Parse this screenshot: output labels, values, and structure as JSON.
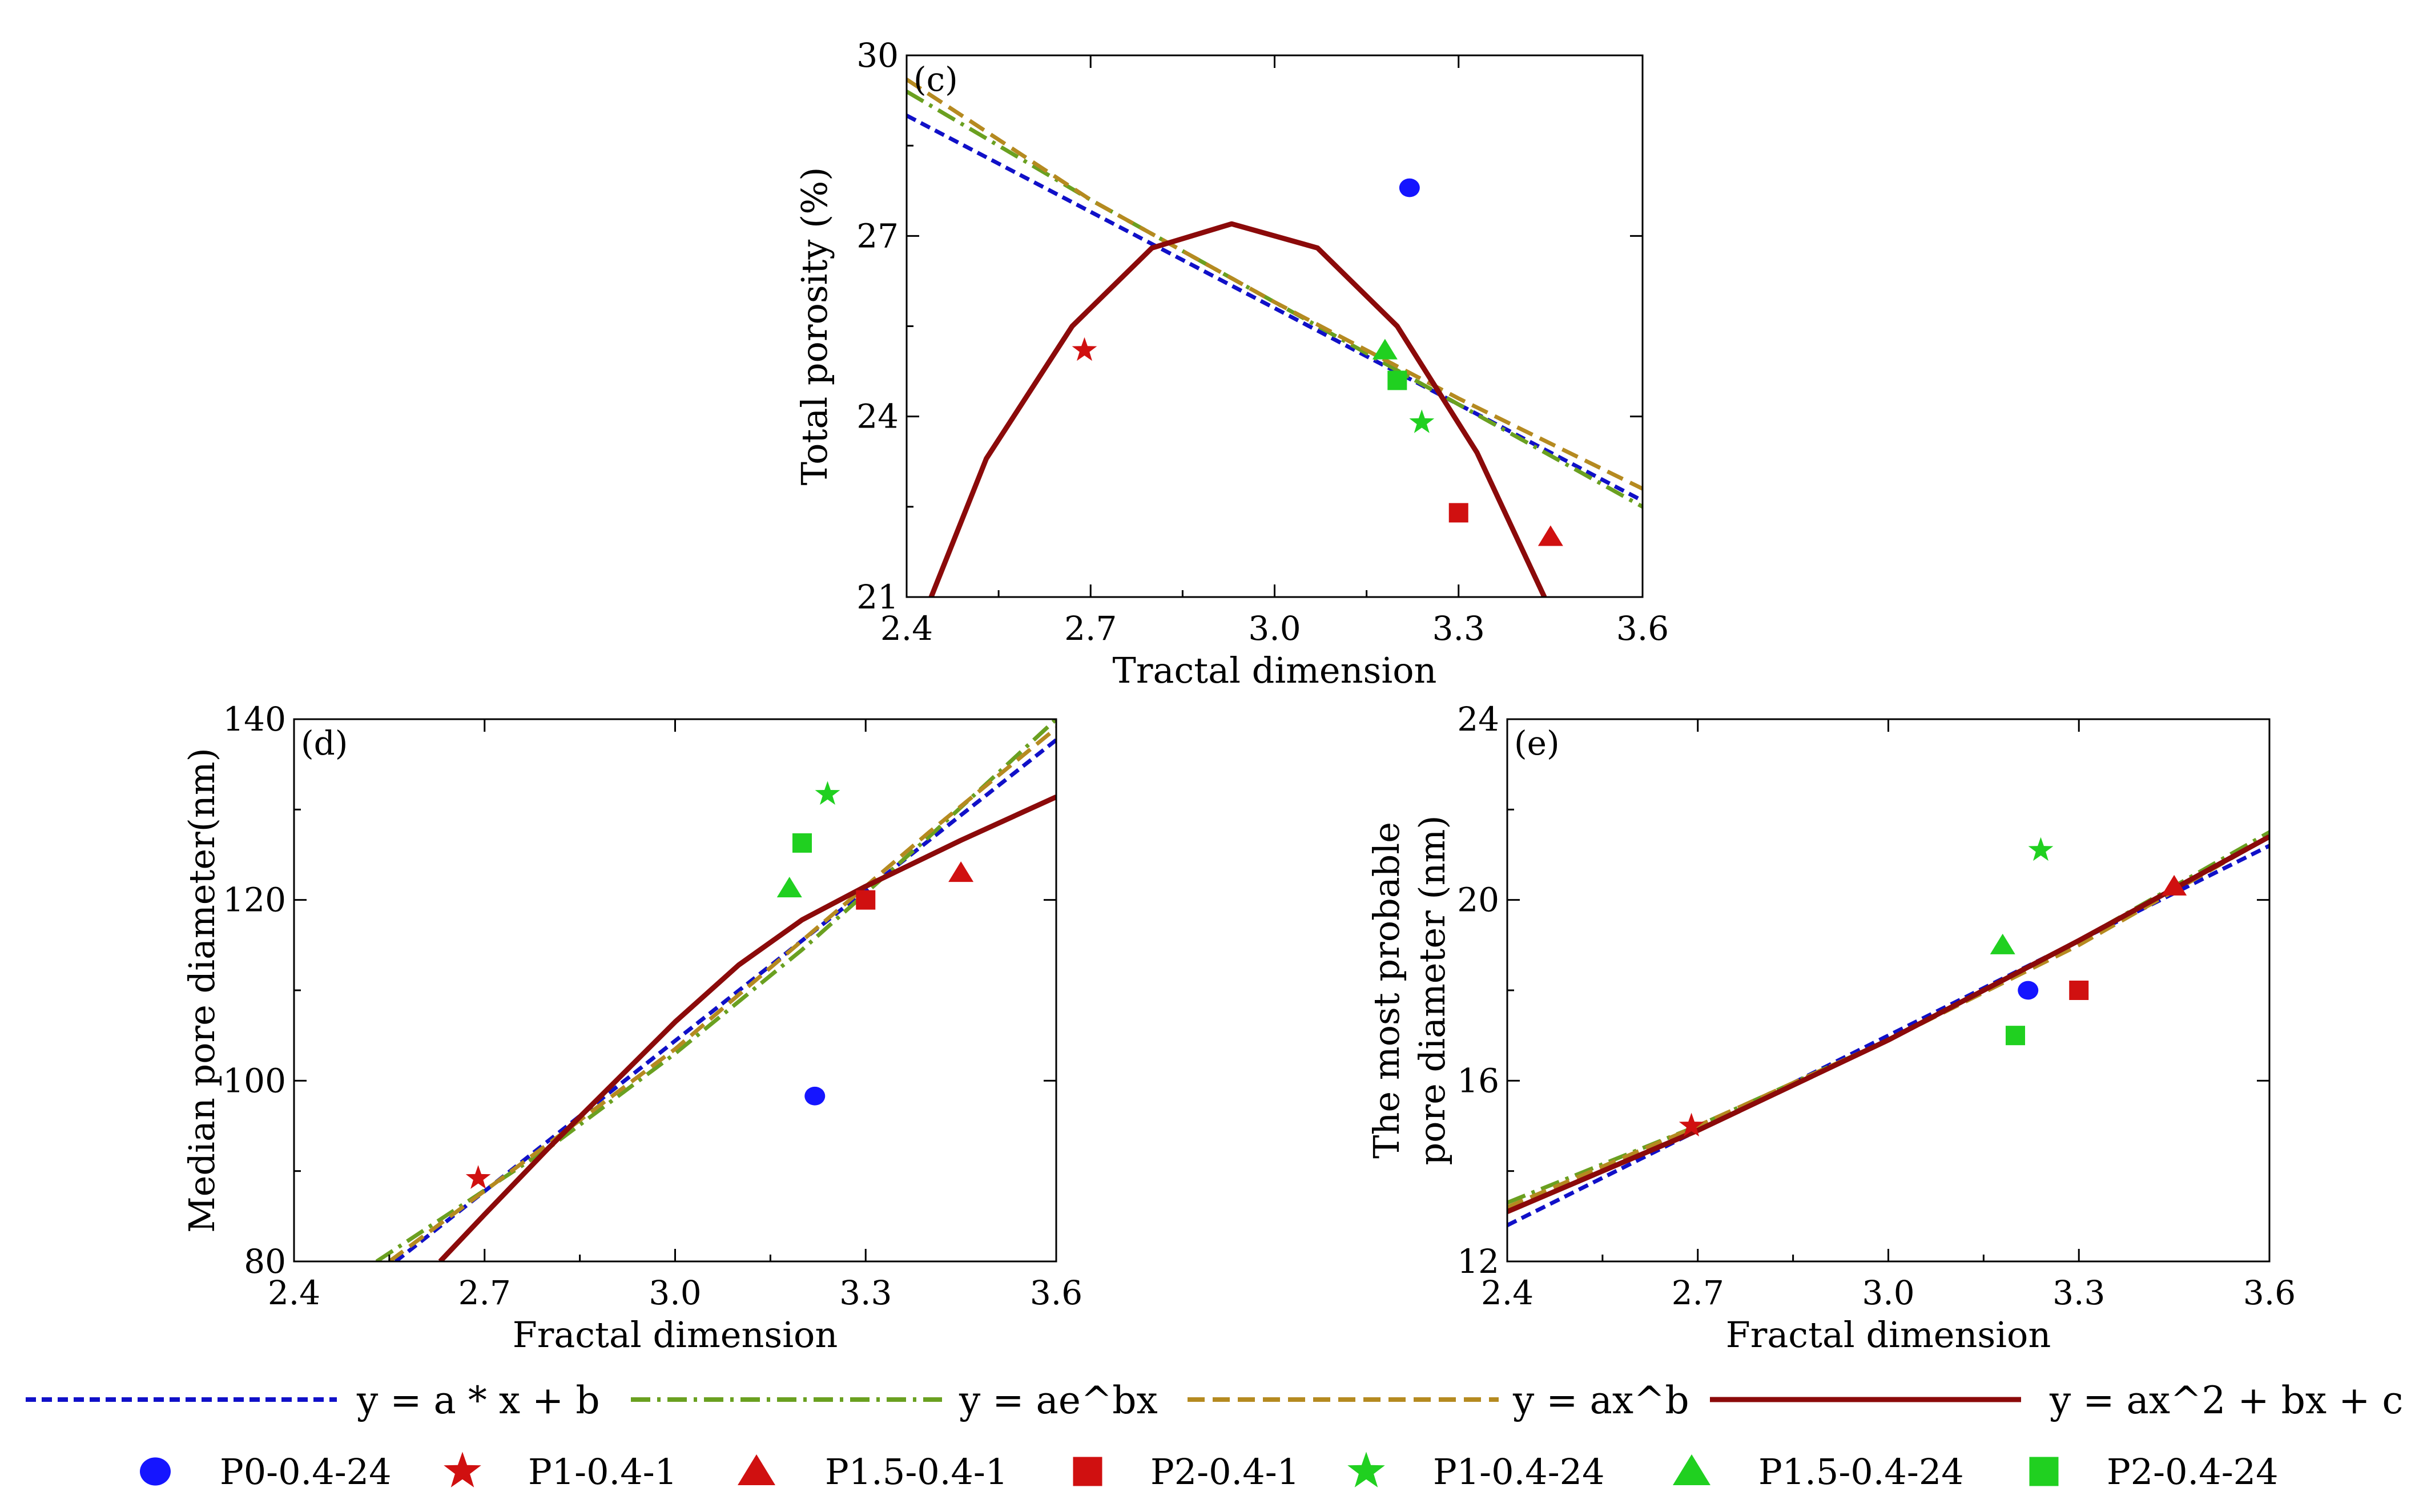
{
  "legend": {
    "fits": [
      {
        "key": "linear",
        "label": "y = a * x + b",
        "color": "#1010c8",
        "dash": "18 10"
      },
      {
        "key": "exp",
        "label": "y = ae^bx",
        "color": "#6aa020",
        "dash": "34 12 6 12"
      },
      {
        "key": "power",
        "label": "y = ax^b",
        "color": "#b58a20",
        "dash": "30 14"
      },
      {
        "key": "quad",
        "label": "y = ax^2 + bx + c",
        "color": "#8b0a0a",
        "dash": ""
      }
    ],
    "samples": [
      {
        "key": "P0-0.4-24",
        "label": "P0-0.4-24",
        "marker": "circle",
        "color": "#1515ff"
      },
      {
        "key": "P1-0.4-1",
        "label": "P1-0.4-1",
        "marker": "star",
        "color": "#d01010"
      },
      {
        "key": "P1.5-0.4-1",
        "label": "P1.5-0.4-1",
        "marker": "triangle",
        "color": "#d01010"
      },
      {
        "key": "P2-0.4-1",
        "label": "P2-0.4-1",
        "marker": "square",
        "color": "#d01010"
      },
      {
        "key": "P1-0.4-24",
        "label": "P1-0.4-24",
        "marker": "star",
        "color": "#20d020"
      },
      {
        "key": "P1.5-0.4-24",
        "label": "P1.5-0.4-24",
        "marker": "triangle",
        "color": "#20d020"
      },
      {
        "key": "P2-0.4-24",
        "label": "P2-0.4-24",
        "marker": "square",
        "color": "#20d020"
      }
    ]
  },
  "chart_data": [
    {
      "id": "c",
      "type": "scatter",
      "panel_label": "(c)",
      "xlabel": "Tractal dimension",
      "ylabel": "Total porosity (%)",
      "xlim": [
        2.4,
        3.6
      ],
      "ylim": [
        21,
        30
      ],
      "xticks": [
        "2.4",
        "2.7",
        "3.0",
        "3.3",
        "3.6"
      ],
      "yticks": [
        "21",
        "24",
        "27",
        "30"
      ],
      "points": [
        {
          "sample": "P0-0.4-24",
          "x": 3.22,
          "y": 27.8
        },
        {
          "sample": "P1-0.4-1",
          "x": 2.69,
          "y": 25.1
        },
        {
          "sample": "P1.5-0.4-1",
          "x": 3.45,
          "y": 22.0
        },
        {
          "sample": "P2-0.4-1",
          "x": 3.3,
          "y": 22.4
        },
        {
          "sample": "P1-0.4-24",
          "x": 3.24,
          "y": 23.9
        },
        {
          "sample": "P1.5-0.4-24",
          "x": 3.18,
          "y": 25.1
        },
        {
          "sample": "P2-0.4-24",
          "x": 3.2,
          "y": 24.6
        }
      ],
      "fits": [
        {
          "key": "linear",
          "x": [
            2.4,
            3.6
          ],
          "y": [
            29.0,
            22.6
          ]
        },
        {
          "key": "exp",
          "x": [
            2.4,
            2.7,
            3.0,
            3.3,
            3.6
          ],
          "y": [
            29.4,
            27.6,
            25.9,
            24.2,
            22.5
          ]
        },
        {
          "key": "power",
          "x": [
            2.4,
            2.7,
            3.0,
            3.3,
            3.6
          ],
          "y": [
            29.6,
            27.6,
            25.9,
            24.3,
            22.8
          ]
        },
        {
          "key": "quad",
          "x": [
            2.44,
            2.53,
            2.67,
            2.8,
            2.93,
            3.07,
            3.2,
            3.33,
            3.44
          ],
          "y": [
            21.0,
            23.3,
            25.5,
            26.8,
            27.2,
            26.8,
            25.5,
            23.4,
            21.0
          ]
        }
      ]
    },
    {
      "id": "d",
      "type": "scatter",
      "panel_label": "(d)",
      "xlabel": "Fractal dimension",
      "ylabel": "Median pore diameter(nm)",
      "xlim": [
        2.4,
        3.6
      ],
      "ylim": [
        80,
        140
      ],
      "xticks": [
        "2.4",
        "2.7",
        "3.0",
        "3.3",
        "3.6"
      ],
      "yticks": [
        "80",
        "100",
        "120",
        "140"
      ],
      "points": [
        {
          "sample": "P0-0.4-24",
          "x": 3.22,
          "y": 98.3
        },
        {
          "sample": "P1-0.4-1",
          "x": 2.69,
          "y": 89.2
        },
        {
          "sample": "P1.5-0.4-1",
          "x": 3.45,
          "y": 123.0
        },
        {
          "sample": "P2-0.4-1",
          "x": 3.3,
          "y": 120.0
        },
        {
          "sample": "P1-0.4-24",
          "x": 3.24,
          "y": 131.7
        },
        {
          "sample": "P1.5-0.4-24",
          "x": 3.18,
          "y": 121.3
        },
        {
          "sample": "P2-0.4-24",
          "x": 3.2,
          "y": 126.3
        }
      ],
      "fits": [
        {
          "key": "linear",
          "x": [
            2.56,
            3.6
          ],
          "y": [
            80.0,
            137.7
          ]
        },
        {
          "key": "exp",
          "x": [
            2.53,
            2.8,
            3.0,
            3.2,
            3.4,
            3.6
          ],
          "y": [
            80.0,
            92.5,
            103.0,
            114.5,
            127.0,
            140.0
          ]
        },
        {
          "key": "power",
          "x": [
            2.55,
            2.8,
            3.0,
            3.2,
            3.4,
            3.6
          ],
          "y": [
            80.0,
            93.0,
            103.5,
            115.5,
            127.5,
            139.0
          ]
        },
        {
          "key": "quad",
          "x": [
            2.63,
            2.7,
            2.8,
            2.9,
            3.0,
            3.1,
            3.2,
            3.3,
            3.45,
            3.6
          ],
          "y": [
            80.0,
            85.2,
            92.5,
            99.5,
            106.5,
            112.8,
            117.8,
            121.5,
            126.6,
            131.4
          ]
        }
      ]
    },
    {
      "id": "e",
      "type": "scatter",
      "panel_label": "(e)",
      "xlabel": "Fractal dimension",
      "ylabel_lines": [
        "The most probable",
        "pore diameter (nm)"
      ],
      "xlim": [
        2.4,
        3.6
      ],
      "ylim": [
        12,
        24
      ],
      "xticks": [
        "2.4",
        "2.7",
        "3.0",
        "3.3",
        "3.6"
      ],
      "yticks": [
        "12",
        "16",
        "20",
        "24"
      ],
      "points": [
        {
          "sample": "P0-0.4-24",
          "x": 3.22,
          "y": 18.0
        },
        {
          "sample": "P1-0.4-1",
          "x": 2.69,
          "y": 15.0
        },
        {
          "sample": "P1.5-0.4-1",
          "x": 3.45,
          "y": 20.3
        },
        {
          "sample": "P2-0.4-1",
          "x": 3.3,
          "y": 18.0
        },
        {
          "sample": "P1-0.4-24",
          "x": 3.24,
          "y": 21.1
        },
        {
          "sample": "P1.5-0.4-24",
          "x": 3.18,
          "y": 19.0
        },
        {
          "sample": "P2-0.4-24",
          "x": 3.2,
          "y": 17.0
        }
      ],
      "fits": [
        {
          "key": "linear",
          "x": [
            2.4,
            3.6
          ],
          "y": [
            12.8,
            21.2
          ]
        },
        {
          "key": "exp",
          "x": [
            2.4,
            2.7,
            3.0,
            3.3,
            3.6
          ],
          "y": [
            13.3,
            15.0,
            16.9,
            19.1,
            21.5
          ]
        },
        {
          "key": "power",
          "x": [
            2.4,
            2.7,
            3.0,
            3.3,
            3.6
          ],
          "y": [
            13.2,
            15.0,
            16.9,
            19.0,
            21.4
          ]
        },
        {
          "key": "quad",
          "x": [
            2.4,
            2.7,
            3.0,
            3.3,
            3.6
          ],
          "y": [
            13.1,
            14.9,
            16.9,
            19.1,
            21.4
          ]
        }
      ]
    }
  ]
}
